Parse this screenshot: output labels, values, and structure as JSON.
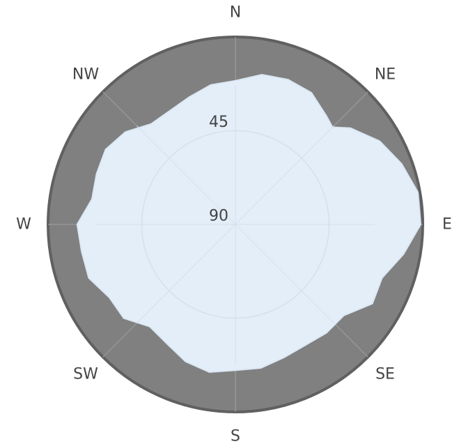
{
  "chart_data": {
    "type": "polar-area",
    "title": "",
    "directions": [
      "N",
      "NE",
      "E",
      "SE",
      "S",
      "SW",
      "W",
      "NW"
    ],
    "radial_axis": {
      "center_value": 90,
      "outer_value": 0,
      "direction": "decreasing-outward",
      "tick_values": [
        45,
        90
      ],
      "tick_labels": [
        "45",
        "90"
      ]
    },
    "series": [
      {
        "name": "",
        "azimuth_deg": [
          0,
          10,
          20,
          30,
          40,
          45,
          50,
          60,
          70,
          80,
          90,
          100,
          110,
          120,
          130,
          140,
          150,
          160,
          170,
          180,
          190,
          200,
          210,
          220,
          230,
          240,
          250,
          260,
          270,
          280,
          290,
          300,
          310,
          320,
          330,
          340,
          350
        ],
        "value": [
          21,
          17,
          16,
          17,
          22,
          24,
          18,
          10,
          5,
          1,
          1,
          8,
          15,
          14,
          22,
          22,
          23,
          22,
          20,
          20,
          18,
          20,
          24,
          26,
          20,
          20,
          15,
          15,
          14,
          20,
          19,
          18,
          21,
          27,
          27,
          25,
          22
        ]
      }
    ],
    "colors": {
      "outer_disc": "#808080",
      "rim": "#606060",
      "visible_area_fill": "#e3eef9",
      "visible_area_stroke": "#dbe8f4",
      "grid_on_dark": "#9a9a9a",
      "grid_on_light": "#d6e0e9",
      "label": "#444444"
    }
  }
}
